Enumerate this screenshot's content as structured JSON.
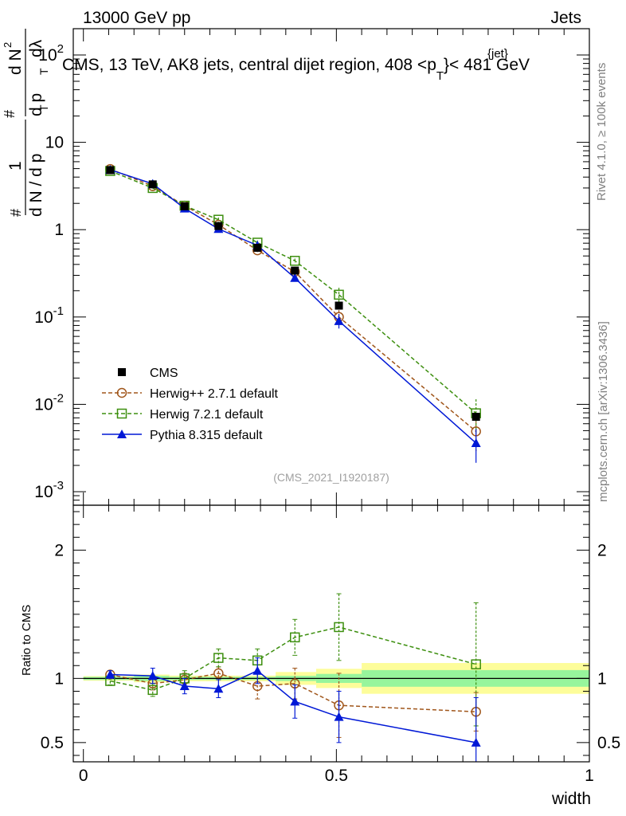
{
  "header": {
    "energy_label": "13000 GeV pp",
    "category_label": "Jets"
  },
  "side_text": {
    "rivet": "Rivet 4.1.0, ≥ 100k events",
    "mcplots": "mcplots.cern.ch [arXiv:1306.3436]"
  },
  "chart_data": [
    {
      "type": "line",
      "panel": "main",
      "title": "CMS, 13 TeV, AK8 jets, central dijet region, 408 <p",
      "title_sup": "{jet}",
      "title_sub": "T",
      "title_end": "}< 481 GeV",
      "analysis_tag": "(CMS_2021_I1920187)",
      "ylabel": {
        "hash1": "#",
        "one": "1",
        "denom": "d N / d p",
        "denom_sub": "T",
        "hash2": "#",
        "num2_sup": "2",
        "num2": "d N",
        "den2": "d p",
        "den2_sub": "T",
        "den2_end": "dλ"
      },
      "yscale": "log",
      "ylim": [
        0.0007,
        200
      ],
      "xlim": [
        -0.02,
        1.0
      ],
      "yticks": [
        {
          "base": "10",
          "exp": "-3"
        },
        {
          "base": "10",
          "exp": "-2"
        },
        {
          "base": "10",
          "exp": "-1"
        },
        {
          "base": "1",
          "exp": ""
        },
        {
          "base": "10",
          "exp": ""
        },
        {
          "base": "10",
          "exp": "2"
        }
      ],
      "x": [
        0.053,
        0.137,
        0.2,
        0.267,
        0.344,
        0.418,
        0.505,
        0.776
      ],
      "series": [
        {
          "name": "CMS",
          "color": "#000000",
          "marker": "square-filled",
          "line": "none",
          "values": [
            4.8,
            3.3,
            1.85,
            1.1,
            0.62,
            0.34,
            0.135,
            0.0072
          ]
        },
        {
          "name": "Herwig++ 2.7.1 default",
          "color": "#a0561b",
          "marker": "circle-open",
          "line": "dashed",
          "values": [
            4.95,
            3.15,
            1.88,
            1.14,
            0.58,
            0.33,
            0.1,
            0.0049
          ]
        },
        {
          "name": "Herwig 7.2.1 default",
          "color": "#3d8f0f",
          "marker": "square-open",
          "line": "dashed",
          "values": [
            4.7,
            3.0,
            1.88,
            1.3,
            0.71,
            0.44,
            0.18,
            0.0079
          ]
        },
        {
          "name": "Pythia 8.315 default",
          "color": "#0018d6",
          "marker": "triangle-filled",
          "line": "solid",
          "values": [
            4.85,
            3.35,
            1.75,
            1.02,
            0.66,
            0.28,
            0.09,
            0.0036
          ]
        }
      ]
    },
    {
      "type": "line",
      "panel": "ratio",
      "ylabel": "Ratio to CMS",
      "xlabel": "width",
      "ylim": [
        0.35,
        2.35
      ],
      "yticks": [
        "0.5",
        "1",
        "2"
      ],
      "xticks": [
        "0",
        "0.5",
        "1"
      ],
      "x": [
        0.053,
        0.137,
        0.2,
        0.267,
        0.344,
        0.418,
        0.505,
        0.776
      ],
      "bands": {
        "edges": [
          0,
          0.1,
          0.17,
          0.24,
          0.3,
          0.38,
          0.46,
          0.55,
          1.0
        ],
        "green_half": [
          0.012,
          0.02,
          0.012,
          0.012,
          0.012,
          0.02,
          0.035,
          0.065
        ],
        "yellow_half": [
          0.018,
          0.03,
          0.022,
          0.022,
          0.022,
          0.05,
          0.075,
          0.12
        ]
      },
      "series": [
        {
          "name": "Herwig++ 2.7.1 default",
          "values": [
            1.03,
            0.96,
            0.99,
            1.04,
            0.94,
            0.96,
            0.79,
            0.74
          ],
          "err": [
            0.03,
            0.05,
            0.05,
            0.05,
            0.1,
            0.12,
            0.25,
            0.15
          ]
        },
        {
          "name": "Herwig 7.2.1 default",
          "values": [
            0.98,
            0.91,
            1.0,
            1.16,
            1.14,
            1.32,
            1.4,
            1.11
          ],
          "err": [
            0.03,
            0.05,
            0.06,
            0.07,
            0.09,
            0.14,
            0.26,
            0.48
          ]
        },
        {
          "name": "Pythia 8.315 default",
          "values": [
            1.03,
            1.02,
            0.94,
            0.92,
            1.06,
            0.82,
            0.7,
            0.5
          ],
          "err": [
            0.03,
            0.06,
            0.06,
            0.07,
            0.1,
            0.13,
            0.2,
            0.35
          ]
        }
      ]
    }
  ]
}
